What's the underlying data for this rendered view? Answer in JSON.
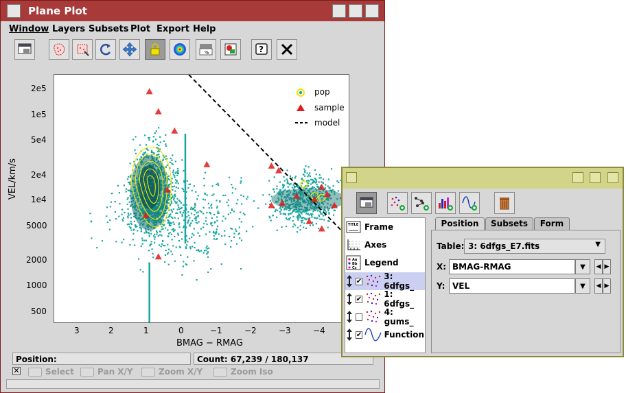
{
  "main_window": {
    "title": "Plane Plot",
    "menu": [
      "Window",
      "Layers",
      "Subsets",
      "Plot",
      "Export",
      "Help"
    ],
    "toolbar": [
      "frame-icon",
      "blob-subset-icon",
      "rect-subset-icon",
      "rescale-icon",
      "navigate-icon",
      "lock-icon",
      "density-icon",
      "legend-toggle-icon",
      "export-image-icon",
      "help-icon",
      "close-icon"
    ]
  },
  "plot": {
    "xlabel": "BMAG − RMAG",
    "ylabel": "VEL/km/s",
    "x_ticks": [
      "3",
      "2",
      "1",
      "0",
      "−1",
      "−2",
      "−3",
      "−4"
    ],
    "y_ticks": [
      "2e5",
      "1e5",
      "5e4",
      "2e4",
      "1e4",
      "5000",
      "2000",
      "1000",
      "500"
    ],
    "legend": [
      "pop",
      "sample",
      "model"
    ]
  },
  "chart_data": {
    "type": "scatter",
    "xlabel": "BMAG − RMAG",
    "ylabel": "VEL/km/s",
    "xlim": [
      3.7,
      -4.5
    ],
    "ylim": [
      350,
      300000
    ],
    "y_scale": "log",
    "x_reversed": true,
    "legend_position": "top-right",
    "colors": {
      "pop": "#1aa6a0",
      "pop_contour": "#f2e600",
      "sample": "#e01b1b",
      "model": "#000000"
    },
    "series": [
      {
        "name": "sample",
        "marker": "triangle",
        "points": [
          [
            1.05,
            190000
          ],
          [
            0.8,
            110000
          ],
          [
            0.35,
            65000
          ],
          [
            0.55,
            13000
          ],
          [
            1.15,
            6500
          ],
          [
            0.8,
            2100
          ],
          [
            -0.55,
            26000
          ],
          [
            -2.35,
            25000
          ],
          [
            -2.55,
            22000
          ],
          [
            -2.35,
            8500
          ],
          [
            -2.65,
            9000
          ],
          [
            -3.05,
            11000
          ],
          [
            -3.55,
            10000
          ],
          [
            -3.75,
            14000
          ],
          [
            -3.9,
            11500
          ],
          [
            -4.1,
            8500
          ],
          [
            -4.35,
            11000
          ],
          [
            -3.4,
            5500
          ],
          [
            -3.75,
            4500
          ],
          [
            -4.45,
            2200
          ]
        ]
      },
      {
        "name": "model",
        "style": "dashed",
        "points": [
          [
            -0.05,
            300000
          ],
          [
            -4.5,
            3500
          ]
        ]
      }
    ]
  },
  "status": {
    "position_label": "Position:",
    "count_label": "Count: 67,239 / 180,137"
  },
  "modes": [
    "Select",
    "Pan X/Y",
    "Zoom X/Y",
    "Zoom Iso"
  ],
  "layers_window": {
    "toolbar": [
      "frame-icon",
      "add-scatter-icon",
      "add-pairs-icon",
      "add-histogram-icon",
      "add-function-icon",
      "delete-icon"
    ],
    "fixed_items": [
      "Frame",
      "Axes",
      "Legend"
    ],
    "layers": [
      {
        "label": "3: 6dfgs_",
        "checked": true,
        "selected": true,
        "icon": "scatter-icon"
      },
      {
        "label": "1: 6dfgs_",
        "checked": true,
        "selected": false,
        "icon": "scatter-icon"
      },
      {
        "label": "4: gums_",
        "checked": false,
        "selected": false,
        "icon": "scatter-icon"
      },
      {
        "label": "Function",
        "checked": true,
        "selected": false,
        "icon": "function-icon"
      }
    ],
    "tabs": [
      "Position",
      "Subsets",
      "Form"
    ],
    "table_label": "Table:",
    "table_value": "3: 6dfgs_E7.fits",
    "x_label": "X:",
    "x_value": "BMAG-RMAG",
    "y_label": "Y:",
    "y_value": "VEL"
  }
}
